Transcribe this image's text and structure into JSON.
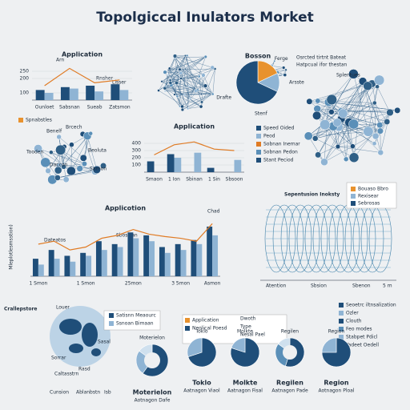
{
  "title": "Topolgiccal Inulators Morket",
  "chart_data": [
    {
      "type": "bar",
      "title": "Application",
      "categories": [
        "Ounloet",
        "Sabsnan",
        "Sueab",
        "Zatsmon"
      ],
      "ylim": [
        50,
        300
      ],
      "yticks": [
        100,
        200,
        250
      ],
      "series": [
        {
          "color": "#1f4e79",
          "values": [
            120,
            140,
            150,
            160
          ]
        },
        {
          "color": "#8fb4d4",
          "values": [
            100,
            130,
            110,
            120
          ]
        },
        {
          "color": "#e07b24",
          "kind": "line",
          "values": [
            150,
            270,
            170,
            190
          ]
        }
      ]
    },
    {
      "type": "pie",
      "title": "Bosson",
      "categories": [
        "Ferge",
        "Arsste",
        "Drafte"
      ],
      "values": [
        18,
        14,
        68
      ],
      "colors": [
        "#e8922e",
        "#8fb4d4",
        "#1f4e79"
      ]
    },
    {
      "type": "bar",
      "title": "Application",
      "categories": [
        "Smaon",
        "1 Ion",
        "Sbinan",
        "1 Sin",
        "Sbsoon"
      ],
      "ylim": [
        0,
        500
      ],
      "yticks": [
        100,
        200,
        300,
        400
      ],
      "series": [
        {
          "color": "#1f4e79",
          "values": [
            150,
            250,
            0,
            60,
            0
          ]
        },
        {
          "color": "#8fb4d4",
          "values": [
            0,
            200,
            270,
            0,
            170
          ]
        },
        {
          "color": "#e07b24",
          "kind": "line",
          "values": [
            240,
            380,
            420,
            320,
            300
          ]
        }
      ],
      "legend": [
        {
          "label": "Speed Oided",
          "color": "#1f4e79"
        },
        {
          "label": "Peod",
          "color": "#8fb4d4"
        },
        {
          "label": "Sobnan Inemar",
          "color": "#e07b24"
        },
        {
          "label": "Sobnan Pedon",
          "color": "#5a8fb8"
        },
        {
          "label": "Stant Peciod",
          "color": "#1f4e79"
        }
      ]
    },
    {
      "type": "bar",
      "title": "Applicotion",
      "ylabel": "Mleplotlesmsstion)",
      "categories": [
        "1 Smon",
        null,
        null,
        "1 Smon",
        null,
        null,
        "25mon",
        null,
        null,
        "3 5mon",
        null,
        "Asmon"
      ],
      "ylim": [
        0,
        100
      ],
      "series": [
        {
          "color": "#1f4e79",
          "values": [
            30,
            45,
            35,
            40,
            60,
            55,
            75,
            70,
            50,
            55,
            62,
            85
          ]
        },
        {
          "color": "#8fb4d4",
          "values": [
            20,
            30,
            25,
            35,
            45,
            50,
            65,
            60,
            40,
            45,
            55,
            70
          ]
        },
        {
          "color": "#e07b24",
          "kind": "line",
          "values": [
            55,
            60,
            45,
            50,
            65,
            70,
            80,
            72,
            68,
            65,
            60,
            90
          ]
        }
      ]
    },
    {
      "type": "pie",
      "donut": true,
      "title": "Moterielon",
      "subtitle": "Aotnagon Dafe",
      "values": [
        60,
        25,
        15
      ],
      "colors": [
        "#1f4e79",
        "#8fb4d4",
        "#cfe0ee"
      ]
    },
    {
      "type": "pie",
      "title": "Toklo",
      "subtitle": "Aatnagon Viaol",
      "values": [
        70,
        30
      ],
      "colors": [
        "#1f4e79",
        "#8fb4d4"
      ]
    },
    {
      "type": "pie",
      "title": "Molkte",
      "subtitle": "Aatnagon Fisal",
      "values": [
        80,
        20
      ],
      "colors": [
        "#1f4e79",
        "#8fb4d4"
      ]
    },
    {
      "type": "pie",
      "donut": true,
      "title": "Regilen",
      "subtitle": "Aatnagon Pade",
      "values": [
        55,
        30,
        15
      ],
      "colors": [
        "#1f4e79",
        "#5a8fb8",
        "#cfe0ee"
      ]
    },
    {
      "type": "pie",
      "title": "Region",
      "subtitle": "Aotnagon Ploal",
      "values": [
        75,
        25
      ],
      "colors": [
        "#1f4e79",
        "#8fb4d4"
      ]
    }
  ],
  "annotations": [
    {
      "text": "Arn"
    },
    {
      "text": "Rnsher"
    },
    {
      "text": "Lisser"
    },
    {
      "text": "Spnabstles",
      "color": "#e8922e"
    },
    {
      "text": "Brcech"
    },
    {
      "text": "Benelf"
    },
    {
      "text": "Tooden"
    },
    {
      "text": "Beoluta"
    },
    {
      "text": "Daccon"
    },
    {
      "text": "Sarnon"
    },
    {
      "text": "Osrcted tirtnt Bateat"
    },
    {
      "text": "Hatpcual ifor thestan"
    },
    {
      "text": "Splentues"
    },
    {
      "text": "Stenf"
    },
    {
      "text": "Sepentusion Inoksty"
    },
    {
      "text": "Atention"
    },
    {
      "text": "Sbsion"
    },
    {
      "text": "Sbenon"
    },
    {
      "text": "5 m"
    },
    {
      "text": "Dateatos"
    },
    {
      "text": "Sbossian"
    },
    {
      "text": "Chad"
    },
    {
      "text": "Crallepstore"
    },
    {
      "text": "Louer"
    },
    {
      "text": "Sorrar"
    },
    {
      "text": "Caltasstrn"
    },
    {
      "text": "Rasd"
    },
    {
      "text": "Sasal"
    },
    {
      "text": "Cunsion"
    },
    {
      "text": "Ablanbstn"
    },
    {
      "text": "Isb"
    },
    {
      "text": "Satisnn Meaourc",
      "color": "#1f4e79"
    },
    {
      "text": "Ssnoan Bimaan",
      "color": "#8fb4d4"
    },
    {
      "text": "Application",
      "color": "#e8922e"
    },
    {
      "text": "Neolical Poesd",
      "color": "#1f4e79"
    },
    {
      "text": "Dwoth"
    },
    {
      "text": "Type"
    },
    {
      "text": "Nesal Pael"
    },
    {
      "text": "Seoetrc iltnsalization",
      "color": "#1f4e79"
    },
    {
      "text": "Ozler",
      "color": "#8fb4d4"
    },
    {
      "text": "Clouth",
      "color": "#1f4e79"
    },
    {
      "text": "Feo modes",
      "color": "#5a8fb8"
    },
    {
      "text": "Stabpet Pdicl",
      "color": "#8fb4d4"
    },
    {
      "text": "Tadeet Oedell",
      "color": "#1f4e79"
    },
    {
      "text": "Bouaso Bbro",
      "color": "#e8922e"
    },
    {
      "text": "Rexisear",
      "color": "#8fb4d4"
    },
    {
      "text": "Sebrosas",
      "color": "#1f4e79"
    }
  ]
}
